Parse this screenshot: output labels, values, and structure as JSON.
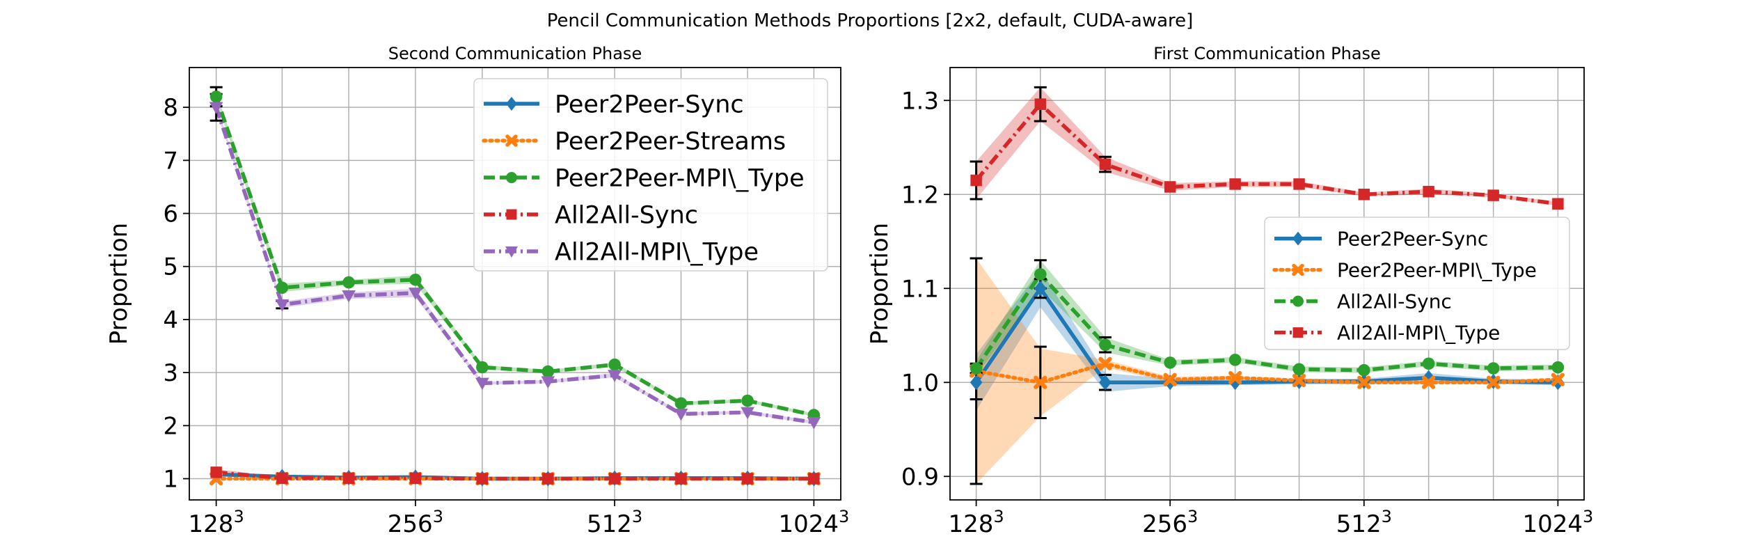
{
  "figure": {
    "suptitle": "Pencil Communication Methods Proportions [2x2, default, CUDA-aware]"
  },
  "chart_data": [
    {
      "type": "line",
      "title": "Second Communication Phase",
      "ylabel": "Proportion",
      "xlabel": "",
      "x_scale": "log2",
      "x": [
        128,
        161,
        203,
        256,
        323,
        406,
        512,
        645,
        813,
        1024
      ],
      "xticks": [
        {
          "x": 128,
          "base": "128",
          "exp": "3"
        },
        {
          "x": 256,
          "base": "256",
          "exp": "3"
        },
        {
          "x": 512,
          "base": "512",
          "exp": "3"
        },
        {
          "x": 1024,
          "base": "1024",
          "exp": "3"
        }
      ],
      "ylim": [
        0.6,
        8.75
      ],
      "yticks": [
        1,
        2,
        3,
        4,
        5,
        6,
        7,
        8
      ],
      "grid": true,
      "legend_position": "top-right",
      "legend_size": "large",
      "series": [
        {
          "name": "Peer2Peer-Sync",
          "color": "#1f77b4",
          "marker": "diamond",
          "dash": "solid",
          "values": [
            1.08,
            1.04,
            1.02,
            1.03,
            1.0,
            1.0,
            1.01,
            1.01,
            1.01,
            1.0
          ]
        },
        {
          "name": "Peer2Peer-Streams",
          "color": "#ff7f0e",
          "marker": "x",
          "dash": "dotted",
          "values": [
            1.0,
            1.0,
            1.0,
            1.0,
            1.0,
            1.0,
            1.0,
            1.0,
            1.0,
            1.0
          ]
        },
        {
          "name": "Peer2Peer-MPI\\_Type",
          "color": "#2ca02c",
          "marker": "circle",
          "dash": "dashed",
          "values": [
            8.2,
            4.6,
            4.7,
            4.75,
            3.1,
            3.02,
            3.15,
            2.42,
            2.47,
            2.2
          ],
          "error": [
            0.18,
            0,
            0,
            0,
            0,
            0,
            0,
            0,
            0,
            0
          ],
          "band": [
            0.08,
            0.08,
            0.05,
            0.08,
            0.04,
            0.03,
            0.04,
            0.03,
            0.03,
            0.03
          ]
        },
        {
          "name": "All2All-Sync",
          "color": "#d62728",
          "marker": "square",
          "dash": "dashdot",
          "values": [
            1.12,
            1.01,
            1.01,
            1.01,
            1.0,
            1.0,
            1.0,
            1.0,
            1.0,
            1.0
          ],
          "band": [
            0.06,
            0.02,
            0.01,
            0.01,
            0.01,
            0.01,
            0.01,
            0.01,
            0.01,
            0.01
          ]
        },
        {
          "name": "All2All-MPI\\_Type",
          "color": "#9467bd",
          "marker": "triangle-down",
          "dash": "dashdot",
          "values": [
            8.0,
            4.28,
            4.45,
            4.5,
            2.8,
            2.83,
            2.95,
            2.22,
            2.25,
            2.06
          ],
          "error": [
            0.25,
            0.07,
            0,
            0,
            0,
            0,
            0,
            0,
            0,
            0
          ],
          "band": [
            0.06,
            0.06,
            0.06,
            0.08,
            0.03,
            0.03,
            0.04,
            0.03,
            0.03,
            0.03
          ]
        }
      ]
    },
    {
      "type": "line",
      "title": "First Communication Phase",
      "ylabel": "Proportion",
      "xlabel": "",
      "x_scale": "log2",
      "x": [
        128,
        161,
        203,
        256,
        323,
        406,
        512,
        645,
        813,
        1024
      ],
      "xticks": [
        {
          "x": 128,
          "base": "128",
          "exp": "3"
        },
        {
          "x": 256,
          "base": "256",
          "exp": "3"
        },
        {
          "x": 512,
          "base": "512",
          "exp": "3"
        },
        {
          "x": 1024,
          "base": "1024",
          "exp": "3"
        }
      ],
      "ylim": [
        0.875,
        1.335
      ],
      "yticks": [
        0.9,
        1.0,
        1.1,
        1.2,
        1.3
      ],
      "ytick_labels": [
        "0.9",
        "1.0",
        "1.1",
        "1.2",
        "1.3"
      ],
      "grid": true,
      "legend_position": "center-right",
      "legend_size": "medium",
      "series": [
        {
          "name": "Peer2Peer-Sync",
          "color": "#1f77b4",
          "marker": "diamond",
          "dash": "solid",
          "values": [
            1.0,
            1.1,
            1.0,
            1.0,
            1.0,
            1.001,
            1.001,
            1.005,
            1.001,
            1.0
          ],
          "error": [
            0.018,
            0.01,
            0.008,
            0,
            0,
            0,
            0,
            0,
            0,
            0
          ],
          "band": [
            0.03,
            0.02,
            0.01,
            0.004,
            0.003,
            0.003,
            0.003,
            0.005,
            0.003,
            0.003
          ]
        },
        {
          "name": "Peer2Peer-MPI\\_Type",
          "color": "#ff7f0e",
          "marker": "x",
          "dash": "dotted",
          "values": [
            1.012,
            1.0,
            1.02,
            1.003,
            1.005,
            1.002,
            1.0,
            1.0,
            1.0,
            1.003
          ],
          "error": [
            0.12,
            0.038,
            0,
            0,
            0,
            0,
            0,
            0,
            0,
            0
          ],
          "band": [
            0.12,
            0.036,
            0.004,
            0.003,
            0.002,
            0.002,
            0.002,
            0.002,
            0.002,
            0.002
          ]
        },
        {
          "name": "All2All-Sync",
          "color": "#2ca02c",
          "marker": "circle",
          "dash": "dashed",
          "values": [
            1.015,
            1.115,
            1.04,
            1.021,
            1.024,
            1.014,
            1.013,
            1.02,
            1.015,
            1.016
          ],
          "error": [
            0.005,
            0.015,
            0.008,
            0,
            0,
            0,
            0,
            0,
            0,
            0
          ],
          "band": [
            0.008,
            0.015,
            0.008,
            0.003,
            0.003,
            0.003,
            0.003,
            0.003,
            0.003,
            0.003
          ]
        },
        {
          "name": "All2All-MPI\\_Type",
          "color": "#d62728",
          "marker": "square",
          "dash": "dashdot",
          "values": [
            1.215,
            1.296,
            1.232,
            1.208,
            1.211,
            1.211,
            1.2,
            1.203,
            1.199,
            1.19
          ],
          "error": [
            0.02,
            0.018,
            0.008,
            0,
            0,
            0,
            0,
            0,
            0,
            0
          ],
          "band": [
            0.02,
            0.018,
            0.008,
            0.004,
            0.003,
            0.003,
            0.002,
            0.003,
            0.002,
            0.002
          ]
        }
      ]
    }
  ]
}
